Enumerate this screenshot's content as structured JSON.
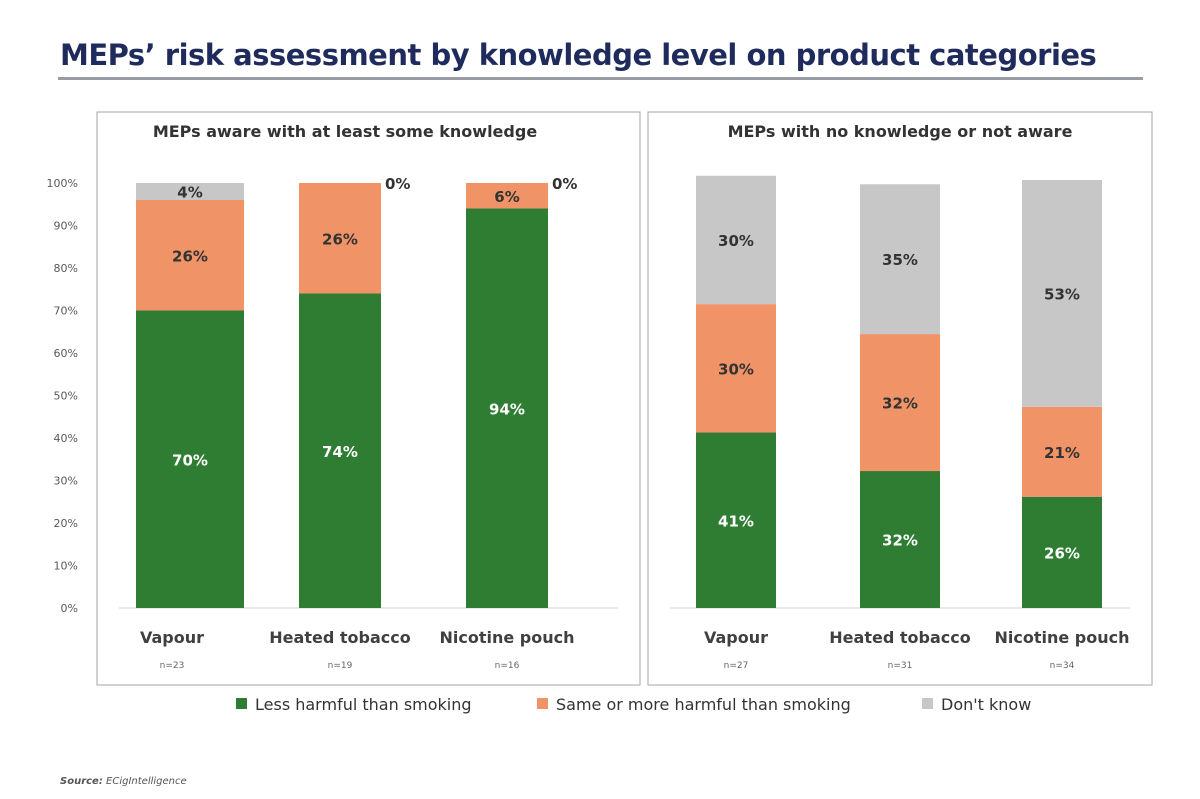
{
  "title": "MEPs’ risk assessment by knowledge level on product categories",
  "source_label": "Source:",
  "source_value": "ECigIntelligence",
  "colors": {
    "less": "#2f7d32",
    "same": "#f09468",
    "dont": "#c7c7c7",
    "title": "#1f2b5c"
  },
  "chart_data": [
    {
      "type": "bar",
      "stacked": true,
      "title": "MEPs aware with at least some knowledge",
      "categories": [
        "Vapour",
        "Heated tobacco",
        "Nicotine pouch"
      ],
      "n_labels": [
        "n=23",
        "n=19",
        "n=16"
      ],
      "ylim": [
        0,
        100
      ],
      "yticks": [
        "0%",
        "10%",
        "20%",
        "30%",
        "40%",
        "50%",
        "60%",
        "70%",
        "80%",
        "90%",
        "100%"
      ],
      "series": [
        {
          "name": "Less harmful than smoking",
          "values": [
            70,
            74,
            94
          ],
          "labels": [
            "70%",
            "74%",
            "94%"
          ]
        },
        {
          "name": "Same or more harmful than smoking",
          "values": [
            26,
            26,
            6
          ],
          "labels": [
            "26%",
            "26%",
            "6%"
          ]
        },
        {
          "name": "Don't know",
          "values": [
            4,
            0,
            0
          ],
          "labels": [
            "4%",
            "0%",
            "0%"
          ]
        }
      ]
    },
    {
      "type": "bar",
      "stacked": true,
      "title": "MEPs with no knowledge or not aware",
      "categories": [
        "Vapour",
        "Heated tobacco",
        "Nicotine pouch"
      ],
      "n_labels": [
        "n=27",
        "n=31",
        "n=34"
      ],
      "ylim": [
        0,
        100
      ],
      "series": [
        {
          "name": "Less harmful than smoking",
          "values": [
            41,
            32,
            26
          ],
          "labels": [
            "41%",
            "32%",
            "26%"
          ]
        },
        {
          "name": "Same or more harmful than smoking",
          "values": [
            30,
            32,
            21
          ],
          "labels": [
            "30%",
            "32%",
            "21%"
          ]
        },
        {
          "name": "Don't know",
          "values": [
            30,
            35,
            53
          ],
          "labels": [
            "30%",
            "35%",
            "53%"
          ]
        }
      ]
    }
  ],
  "legend": {
    "placement": "bottom",
    "items": [
      "Less harmful than smoking",
      "Same or more harmful than smoking",
      "Don't know"
    ]
  }
}
